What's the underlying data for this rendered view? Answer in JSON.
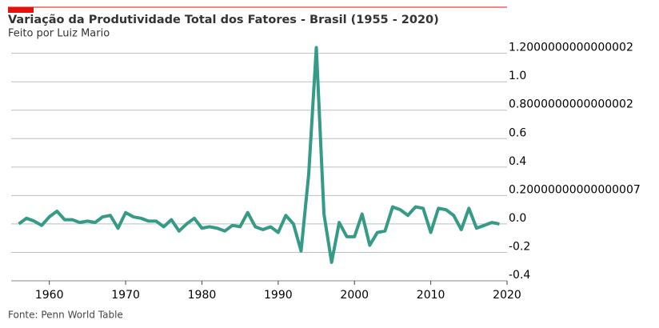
{
  "chart_data": {
    "type": "line",
    "title": "Variação da Produtividade Total dos Fatores - Brasil (1955 - 2020)",
    "subtitle": "Feito por Luiz Mario",
    "source": "Fonte: Penn World Table",
    "x": [
      1956,
      1957,
      1958,
      1959,
      1960,
      1961,
      1962,
      1963,
      1964,
      1965,
      1966,
      1967,
      1968,
      1969,
      1970,
      1971,
      1972,
      1973,
      1974,
      1975,
      1976,
      1977,
      1978,
      1979,
      1980,
      1981,
      1982,
      1983,
      1984,
      1985,
      1986,
      1987,
      1988,
      1989,
      1990,
      1991,
      1992,
      1993,
      1994,
      1995,
      1996,
      1997,
      1998,
      1999,
      2000,
      2001,
      2002,
      2003,
      2004,
      2005,
      2006,
      2007,
      2008,
      2009,
      2010,
      2011,
      2012,
      2013,
      2014,
      2015,
      2016,
      2017,
      2018,
      2019
    ],
    "series": [
      {
        "color": "#359b87",
        "values": [
          0.0,
          0.04,
          0.02,
          -0.01,
          0.05,
          0.09,
          0.03,
          0.03,
          0.01,
          0.02,
          0.01,
          0.05,
          0.06,
          -0.03,
          0.08,
          0.05,
          0.04,
          0.02,
          0.02,
          -0.02,
          0.03,
          -0.05,
          0.0,
          0.04,
          -0.03,
          -0.02,
          -0.03,
          -0.05,
          -0.01,
          -0.02,
          0.08,
          -0.02,
          -0.04,
          -0.02,
          -0.06,
          0.06,
          0.0,
          -0.19,
          0.35,
          1.24,
          0.07,
          -0.27,
          0.01,
          -0.09,
          -0.09,
          0.07,
          -0.15,
          -0.06,
          -0.05,
          0.12,
          0.1,
          0.06,
          0.12,
          0.11,
          -0.06,
          0.11,
          0.1,
          0.06,
          -0.04,
          0.11,
          -0.03,
          -0.01,
          0.01,
          0.0
        ]
      }
    ],
    "xlim": [
      1955,
      2020
    ],
    "xticks": [
      1960,
      1970,
      1980,
      1990,
      2000,
      2010,
      2020
    ],
    "ylim": [
      -0.4,
      1.26
    ],
    "yticks": [
      -0.4,
      -0.2,
      {
        "value": 0,
        "label": "0.0"
      },
      0.20000000000000007,
      0.4,
      0.6,
      0.8000000000000002,
      {
        "value": 1,
        "label": "1.0"
      },
      1.2000000000000002
    ],
    "grid": true
  }
}
